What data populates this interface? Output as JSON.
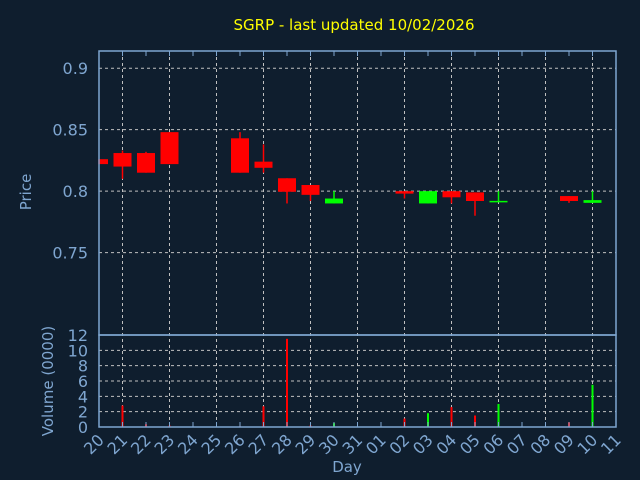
{
  "chart_data": {
    "type": "candlestick",
    "title": "SGRP - last updated 10/02/2026",
    "xlabel": "Day",
    "ylabel": "Price",
    "volume_label": "Volume (0000)",
    "x_ticks": [
      "20",
      "21",
      "22",
      "23",
      "24",
      "25",
      "26",
      "27",
      "28",
      "29",
      "30",
      "31",
      "01",
      "02",
      "03",
      "04",
      "05",
      "06",
      "07",
      "08",
      "09",
      "10",
      "11"
    ],
    "price_ticks": [
      0.75,
      0.8,
      0.85,
      0.9
    ],
    "price_tick_labels": [
      "0.75",
      "0.8",
      "0.85",
      "0.9"
    ],
    "price_ylim": [
      0.683,
      0.914
    ],
    "volume_ticks": [
      0,
      2,
      4,
      6,
      8,
      10,
      12
    ],
    "volume_tick_labels": [
      "0",
      "2",
      "4",
      "6",
      "8",
      "10",
      "12"
    ],
    "volume_ylim": [
      0,
      12
    ],
    "grid": true,
    "colors": {
      "up": "#00ff00",
      "down": "#ff0000",
      "background": "#0f1e2e",
      "axis": "#7fa6d0",
      "title": "#ffff00",
      "grid": "#c0c0c0"
    },
    "candles": [
      {
        "day": "20",
        "open": 0.826,
        "high": 0.826,
        "low": 0.822,
        "close": 0.822,
        "volume": 0
      },
      {
        "day": "21",
        "open": 0.831,
        "high": 0.833,
        "low": 0.81,
        "close": 0.82,
        "volume": 2.8
      },
      {
        "day": "22",
        "open": 0.831,
        "high": 0.832,
        "low": 0.815,
        "close": 0.815,
        "volume": 0.36
      },
      {
        "day": "23",
        "open": 0.848,
        "high": 0.848,
        "low": 0.822,
        "close": 0.822,
        "volume": 0.2
      },
      {
        "day": "26",
        "open": 0.843,
        "high": 0.848,
        "low": 0.815,
        "close": 0.815,
        "volume": 0.1
      },
      {
        "day": "27",
        "open": 0.824,
        "high": 0.838,
        "low": 0.815,
        "close": 0.819,
        "volume": 2.7
      },
      {
        "day": "28",
        "open": 0.8105,
        "high": 0.8105,
        "low": 0.79,
        "close": 0.7995,
        "volume": 11.5
      },
      {
        "day": "29",
        "open": 0.805,
        "high": 0.805,
        "low": 0.792,
        "close": 0.797,
        "volume": 0.2
      },
      {
        "day": "30",
        "open": 0.79,
        "high": 0.8,
        "low": 0.79,
        "close": 0.794,
        "volume": 0.5
      },
      {
        "day": "02",
        "open": 0.8,
        "high": 0.8,
        "low": 0.794,
        "close": 0.798,
        "volume": 1.1
      },
      {
        "day": "03",
        "open": 0.79,
        "high": 0.8,
        "low": 0.79,
        "close": 0.8,
        "volume": 1.8
      },
      {
        "day": "04",
        "open": 0.8,
        "high": 0.8,
        "low": 0.79,
        "close": 0.795,
        "volume": 2.6
      },
      {
        "day": "05",
        "open": 0.799,
        "high": 0.799,
        "low": 0.78,
        "close": 0.792,
        "volume": 1.5
      },
      {
        "day": "06",
        "open": 0.792,
        "high": 0.8,
        "low": 0.792,
        "close": 0.7921,
        "volume": 3.0
      },
      {
        "day": "09",
        "open": 0.796,
        "high": 0.796,
        "low": 0.7905,
        "close": 0.792,
        "volume": 0.6
      },
      {
        "day": "10",
        "open": 0.7905,
        "high": 0.8,
        "low": 0.7905,
        "close": 0.7927,
        "volume": 5.5
      }
    ]
  }
}
